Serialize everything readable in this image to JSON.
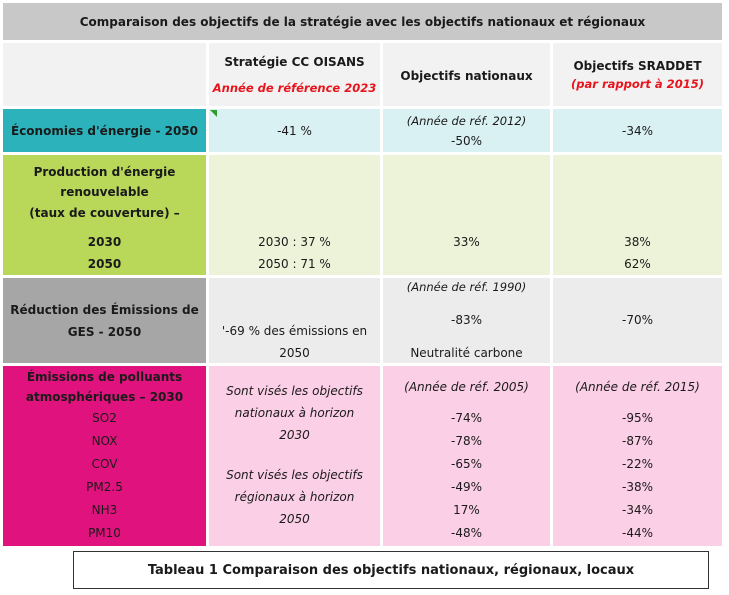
{
  "colors": {
    "title_bg": "#c8c8c8",
    "header_bg": "#f2f2f2",
    "teal": "#2cb2ba",
    "teal_light": "#daf1f4",
    "lime": "#b9d85a",
    "lime_light": "#ecf3d8",
    "grey": "#a6a6a6",
    "grey_light": "#ececec",
    "magenta": "#e0127d",
    "pink_light": "#fbcfe6",
    "red_text": "#e8141c"
  },
  "title": "Comparaison des objectifs de la stratégie avec les objectifs nationaux et régionaux",
  "headers": {
    "col1_title": "Stratégie CC OISANS",
    "col1_sub": "Année de référence 2023",
    "col2_title": "Objectifs nationaux",
    "col3_title": "Objectifs SRADDET",
    "col3_sub": "(par rapport à 2015)"
  },
  "rows": {
    "energy_savings": {
      "label": "Économies d'énergie - 2050",
      "strategy": "-41 %",
      "national_ref": "(Année de réf. 2012)",
      "national_value": "-50%",
      "regional": "-34%"
    },
    "renewable": {
      "label_line1": "Production d'énergie",
      "label_line2": "renouvelable",
      "label_line3": "(taux de couverture) –",
      "year_2030": "2030",
      "year_2050": "2050",
      "strategy_2030": "2030 : 37 %",
      "strategy_2050": "2050 : 71 %",
      "national_2030": "33%",
      "regional_2030": "38%",
      "regional_2050": "62%"
    },
    "ghg": {
      "label_line1": "Réduction des Émissions de",
      "label_line2": "GES - 2050",
      "strategy_line1": "'-69 % des émissions en",
      "strategy_line2": "2050",
      "national_ref": "(Année de réf. 1990)",
      "national_value": "-83%",
      "national_note": "Neutralité carbone",
      "regional": "-70%"
    },
    "pollutants": {
      "label_line1": "Émissions de polluants",
      "label_line2": "atmosphériques – 2030",
      "strategy_text1_line1": "Sont visés les objectifs",
      "strategy_text1_line2": "nationaux à horizon",
      "strategy_text1_line3": "2030",
      "strategy_text2_line1": "Sont visés les objectifs",
      "strategy_text2_line2": "régionaux à horizon",
      "strategy_text2_line3": "2050",
      "national_ref": "(Année de réf. 2005)",
      "regional_ref": "(Année de réf. 2015)",
      "items": [
        {
          "name": "SO2",
          "national": "-74%",
          "regional": "-95%"
        },
        {
          "name": "NOX",
          "national": "-78%",
          "regional": "-87%"
        },
        {
          "name": "COV",
          "national": "-65%",
          "regional": "-22%"
        },
        {
          "name": "PM2.5",
          "national": "-49%",
          "regional": "-38%"
        },
        {
          "name": "NH3",
          "national": "17%",
          "regional": "-34%"
        },
        {
          "name": "PM10",
          "national": "-48%",
          "regional": "-44%"
        }
      ]
    }
  },
  "caption": "Tableau 1 Comparaison des objectifs nationaux, régionaux, locaux"
}
